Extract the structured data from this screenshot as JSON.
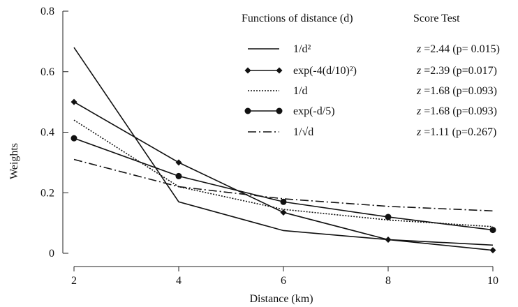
{
  "chart_data": {
    "type": "line",
    "xlabel": "Distance (km)",
    "ylabel": "Weights",
    "xlim": [
      2,
      10
    ],
    "ylim": [
      0,
      0.8
    ],
    "xticks": [
      2,
      4,
      6,
      8,
      10
    ],
    "yticks": [
      0,
      0.2,
      0.4,
      0.6,
      0.8
    ],
    "ytick_labels": [
      "0",
      "0.2",
      "0.4",
      "0.6",
      "0.8"
    ],
    "grid": false,
    "legend_position": "top-right",
    "legend_header_functions": "Functions of distance (d)",
    "legend_header_test": "Score Test",
    "series": [
      {
        "name": "1/d²",
        "z_label": "z",
        "score_test": "=2.44 (p= 0.015)",
        "style": "solid",
        "marker": "none",
        "x": [
          2,
          4,
          6,
          8,
          10
        ],
        "values": [
          0.68,
          0.17,
          0.075,
          0.045,
          0.027
        ]
      },
      {
        "name": "exp(-4(d/10)²)",
        "z_label": "z",
        "score_test": "=2.39 (p=0.017)",
        "style": "solid",
        "marker": "diamond",
        "x": [
          2,
          4,
          6,
          8,
          10
        ],
        "values": [
          0.5,
          0.3,
          0.135,
          0.045,
          0.01
        ]
      },
      {
        "name": "1/d",
        "z_label": "z",
        "score_test": "=1.68 (p=0.093)",
        "style": "dotted",
        "marker": "none",
        "x": [
          2,
          4,
          6,
          8,
          10
        ],
        "values": [
          0.44,
          0.22,
          0.145,
          0.11,
          0.088
        ]
      },
      {
        "name": "exp(-d/5)",
        "z_label": "z",
        "score_test": "=1.68 (p=0.093)",
        "style": "solid",
        "marker": "circle",
        "x": [
          2,
          4,
          6,
          8,
          10
        ],
        "values": [
          0.38,
          0.255,
          0.17,
          0.12,
          0.077
        ]
      },
      {
        "name": "1/√d",
        "z_label": "z",
        "score_test": "=1.11 (p=0.267)",
        "style": "dashdot",
        "marker": "none",
        "x": [
          2,
          4,
          6,
          8,
          10
        ],
        "values": [
          0.31,
          0.22,
          0.18,
          0.155,
          0.14
        ]
      }
    ]
  }
}
